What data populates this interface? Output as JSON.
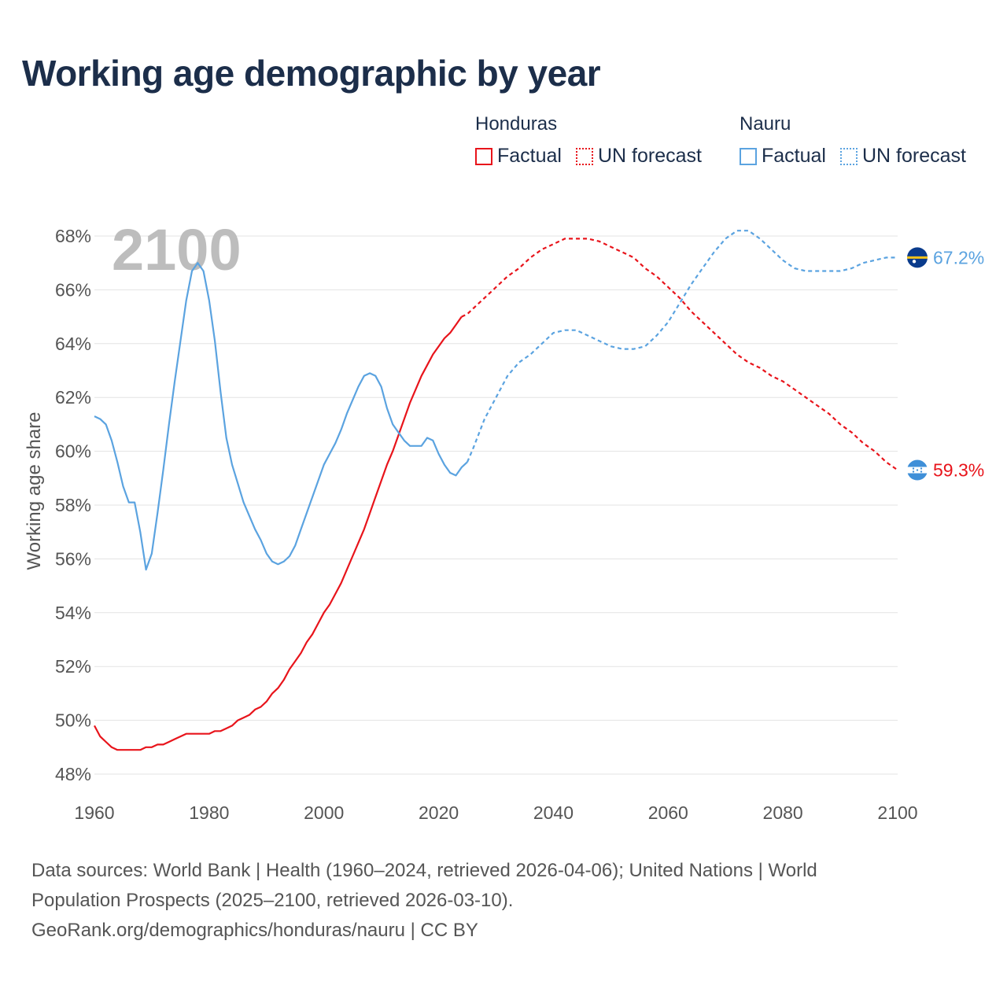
{
  "chart_data": {
    "type": "line",
    "title": "Working age demographic by year",
    "ylabel": "Working age share",
    "xlabel": "",
    "xlim": [
      1960,
      2100
    ],
    "ylim": [
      48,
      68
    ],
    "x_ticks": [
      1960,
      1980,
      2000,
      2020,
      2040,
      2060,
      2080,
      2100
    ],
    "y_ticks": [
      "48%",
      "50%",
      "52%",
      "54%",
      "56%",
      "58%",
      "60%",
      "62%",
      "64%",
      "66%",
      "68%"
    ],
    "y_tick_values": [
      48,
      50,
      52,
      54,
      56,
      58,
      60,
      62,
      64,
      66,
      68
    ],
    "year_watermark": "2100",
    "grid": true,
    "series": [
      {
        "name": "Honduras",
        "color": "#e8141b",
        "factual_label": "Factual",
        "forecast_label": "UN forecast",
        "end_label": "59.3%",
        "end_value": 59.3,
        "flag": "honduras-flag-icon",
        "factual": [
          [
            1960,
            49.8
          ],
          [
            1961,
            49.4
          ],
          [
            1962,
            49.2
          ],
          [
            1963,
            49.0
          ],
          [
            1964,
            48.9
          ],
          [
            1965,
            48.9
          ],
          [
            1966,
            48.9
          ],
          [
            1967,
            48.9
          ],
          [
            1968,
            48.9
          ],
          [
            1969,
            49.0
          ],
          [
            1970,
            49.0
          ],
          [
            1971,
            49.1
          ],
          [
            1972,
            49.1
          ],
          [
            1973,
            49.2
          ],
          [
            1974,
            49.3
          ],
          [
            1975,
            49.4
          ],
          [
            1976,
            49.5
          ],
          [
            1977,
            49.5
          ],
          [
            1978,
            49.5
          ],
          [
            1979,
            49.5
          ],
          [
            1980,
            49.5
          ],
          [
            1981,
            49.6
          ],
          [
            1982,
            49.6
          ],
          [
            1983,
            49.7
          ],
          [
            1984,
            49.8
          ],
          [
            1985,
            50.0
          ],
          [
            1986,
            50.1
          ],
          [
            1987,
            50.2
          ],
          [
            1988,
            50.4
          ],
          [
            1989,
            50.5
          ],
          [
            1990,
            50.7
          ],
          [
            1991,
            51.0
          ],
          [
            1992,
            51.2
          ],
          [
            1993,
            51.5
          ],
          [
            1994,
            51.9
          ],
          [
            1995,
            52.2
          ],
          [
            1996,
            52.5
          ],
          [
            1997,
            52.9
          ],
          [
            1998,
            53.2
          ],
          [
            1999,
            53.6
          ],
          [
            2000,
            54.0
          ],
          [
            2001,
            54.3
          ],
          [
            2002,
            54.7
          ],
          [
            2003,
            55.1
          ],
          [
            2004,
            55.6
          ],
          [
            2005,
            56.1
          ],
          [
            2006,
            56.6
          ],
          [
            2007,
            57.1
          ],
          [
            2008,
            57.7
          ],
          [
            2009,
            58.3
          ],
          [
            2010,
            58.9
          ],
          [
            2011,
            59.5
          ],
          [
            2012,
            60.0
          ],
          [
            2013,
            60.6
          ],
          [
            2014,
            61.2
          ],
          [
            2015,
            61.8
          ],
          [
            2016,
            62.3
          ],
          [
            2017,
            62.8
          ],
          [
            2018,
            63.2
          ],
          [
            2019,
            63.6
          ],
          [
            2020,
            63.9
          ],
          [
            2021,
            64.2
          ],
          [
            2022,
            64.4
          ],
          [
            2023,
            64.7
          ],
          [
            2024,
            65.0
          ]
        ],
        "forecast": [
          [
            2024,
            65.0
          ],
          [
            2025,
            65.1
          ],
          [
            2026,
            65.3
          ],
          [
            2028,
            65.7
          ],
          [
            2030,
            66.1
          ],
          [
            2032,
            66.5
          ],
          [
            2034,
            66.8
          ],
          [
            2036,
            67.2
          ],
          [
            2038,
            67.5
          ],
          [
            2040,
            67.7
          ],
          [
            2042,
            67.9
          ],
          [
            2044,
            67.9
          ],
          [
            2046,
            67.9
          ],
          [
            2048,
            67.8
          ],
          [
            2050,
            67.6
          ],
          [
            2052,
            67.4
          ],
          [
            2054,
            67.2
          ],
          [
            2056,
            66.8
          ],
          [
            2058,
            66.5
          ],
          [
            2060,
            66.1
          ],
          [
            2062,
            65.7
          ],
          [
            2064,
            65.2
          ],
          [
            2066,
            64.8
          ],
          [
            2068,
            64.4
          ],
          [
            2070,
            64.0
          ],
          [
            2072,
            63.6
          ],
          [
            2074,
            63.3
          ],
          [
            2076,
            63.1
          ],
          [
            2078,
            62.8
          ],
          [
            2080,
            62.6
          ],
          [
            2082,
            62.3
          ],
          [
            2084,
            62.0
          ],
          [
            2086,
            61.7
          ],
          [
            2088,
            61.4
          ],
          [
            2090,
            61.0
          ],
          [
            2092,
            60.7
          ],
          [
            2094,
            60.3
          ],
          [
            2096,
            60.0
          ],
          [
            2098,
            59.6
          ],
          [
            2100,
            59.3
          ]
        ]
      },
      {
        "name": "Nauru",
        "color": "#5ba3e0",
        "factual_label": "Factual",
        "forecast_label": "UN forecast",
        "end_label": "67.2%",
        "end_value": 67.2,
        "flag": "nauru-flag-icon",
        "factual": [
          [
            1960,
            61.3
          ],
          [
            1961,
            61.2
          ],
          [
            1962,
            61.0
          ],
          [
            1963,
            60.4
          ],
          [
            1964,
            59.6
          ],
          [
            1965,
            58.7
          ],
          [
            1966,
            58.1
          ],
          [
            1967,
            58.1
          ],
          [
            1968,
            57.0
          ],
          [
            1969,
            55.6
          ],
          [
            1970,
            56.2
          ],
          [
            1971,
            57.7
          ],
          [
            1972,
            59.3
          ],
          [
            1973,
            61.0
          ],
          [
            1974,
            62.6
          ],
          [
            1975,
            64.1
          ],
          [
            1976,
            65.6
          ],
          [
            1977,
            66.7
          ],
          [
            1978,
            67.0
          ],
          [
            1979,
            66.7
          ],
          [
            1980,
            65.6
          ],
          [
            1981,
            64.1
          ],
          [
            1982,
            62.2
          ],
          [
            1983,
            60.5
          ],
          [
            1984,
            59.5
          ],
          [
            1985,
            58.8
          ],
          [
            1986,
            58.1
          ],
          [
            1987,
            57.6
          ],
          [
            1988,
            57.1
          ],
          [
            1989,
            56.7
          ],
          [
            1990,
            56.2
          ],
          [
            1991,
            55.9
          ],
          [
            1992,
            55.8
          ],
          [
            1993,
            55.9
          ],
          [
            1994,
            56.1
          ],
          [
            1995,
            56.5
          ],
          [
            1996,
            57.1
          ],
          [
            1997,
            57.7
          ],
          [
            1998,
            58.3
          ],
          [
            1999,
            58.9
          ],
          [
            2000,
            59.5
          ],
          [
            2001,
            59.9
          ],
          [
            2002,
            60.3
          ],
          [
            2003,
            60.8
          ],
          [
            2004,
            61.4
          ],
          [
            2005,
            61.9
          ],
          [
            2006,
            62.4
          ],
          [
            2007,
            62.8
          ],
          [
            2008,
            62.9
          ],
          [
            2009,
            62.8
          ],
          [
            2010,
            62.4
          ],
          [
            2011,
            61.6
          ],
          [
            2012,
            61.0
          ],
          [
            2013,
            60.7
          ],
          [
            2014,
            60.4
          ],
          [
            2015,
            60.2
          ],
          [
            2016,
            60.2
          ],
          [
            2017,
            60.2
          ],
          [
            2018,
            60.5
          ],
          [
            2019,
            60.4
          ],
          [
            2020,
            59.9
          ],
          [
            2021,
            59.5
          ],
          [
            2022,
            59.2
          ],
          [
            2023,
            59.1
          ],
          [
            2024,
            59.4
          ],
          [
            2025,
            59.6
          ]
        ],
        "forecast": [
          [
            2025,
            59.6
          ],
          [
            2026,
            60.1
          ],
          [
            2028,
            61.2
          ],
          [
            2030,
            62.0
          ],
          [
            2032,
            62.8
          ],
          [
            2034,
            63.3
          ],
          [
            2036,
            63.6
          ],
          [
            2038,
            64.0
          ],
          [
            2040,
            64.4
          ],
          [
            2042,
            64.5
          ],
          [
            2044,
            64.5
          ],
          [
            2046,
            64.3
          ],
          [
            2048,
            64.1
          ],
          [
            2050,
            63.9
          ],
          [
            2052,
            63.8
          ],
          [
            2054,
            63.8
          ],
          [
            2056,
            63.9
          ],
          [
            2058,
            64.3
          ],
          [
            2060,
            64.8
          ],
          [
            2062,
            65.5
          ],
          [
            2064,
            66.2
          ],
          [
            2066,
            66.8
          ],
          [
            2068,
            67.4
          ],
          [
            2070,
            67.9
          ],
          [
            2072,
            68.2
          ],
          [
            2074,
            68.2
          ],
          [
            2076,
            67.9
          ],
          [
            2078,
            67.5
          ],
          [
            2080,
            67.1
          ],
          [
            2082,
            66.8
          ],
          [
            2084,
            66.7
          ],
          [
            2086,
            66.7
          ],
          [
            2088,
            66.7
          ],
          [
            2090,
            66.7
          ],
          [
            2092,
            66.8
          ],
          [
            2094,
            67.0
          ],
          [
            2096,
            67.1
          ],
          [
            2098,
            67.2
          ],
          [
            2100,
            67.2
          ]
        ]
      }
    ]
  },
  "legend": {
    "groups": [
      {
        "name": "Honduras",
        "factual": "Factual",
        "forecast": "UN forecast",
        "color": "#e8141b"
      },
      {
        "name": "Nauru",
        "factual": "Factual",
        "forecast": "UN forecast",
        "color": "#5ba3e0"
      }
    ]
  },
  "footer": {
    "line1": "Data sources: World Bank | Health (1960–2024, retrieved 2026-04-06); United Nations | World",
    "line2": "Population Prospects (2025–2100, retrieved 2026-03-10).",
    "line3": "GeoRank.org/demographics/honduras/nauru | CC BY"
  }
}
